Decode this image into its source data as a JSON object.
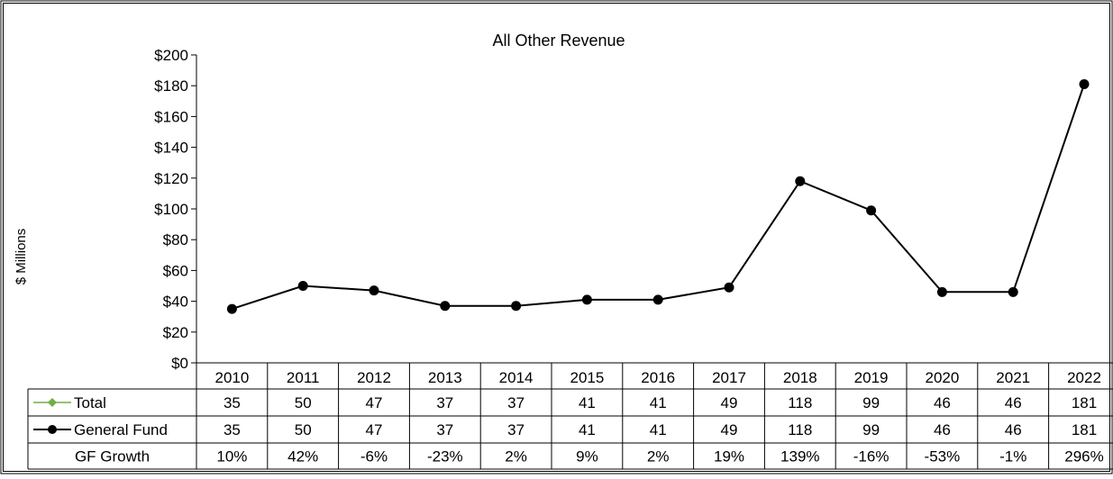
{
  "chart_data": {
    "type": "line",
    "title": "All Other Revenue",
    "ylabel": "$ Millions",
    "ylim": [
      0,
      200
    ],
    "y_ticks": [
      "$0",
      "$20",
      "$40",
      "$60",
      "$80",
      "$100",
      "$120",
      "$140",
      "$160",
      "$180",
      "$200"
    ],
    "categories": [
      "2010",
      "2011",
      "2012",
      "2013",
      "2014",
      "2015",
      "2016",
      "2017",
      "2018",
      "2019",
      "2020",
      "2021",
      "2022"
    ],
    "series": [
      {
        "name": "Total",
        "color": "#70ad47",
        "marker": "diamond",
        "visible_line": false,
        "values": [
          35,
          50,
          47,
          37,
          37,
          41,
          41,
          49,
          118,
          99,
          46,
          46,
          181
        ]
      },
      {
        "name": "General Fund",
        "color": "#000000",
        "marker": "circle",
        "visible_line": true,
        "values": [
          35,
          50,
          47,
          37,
          37,
          41,
          41,
          49,
          118,
          99,
          46,
          46,
          181
        ]
      }
    ],
    "table_rows": [
      {
        "label": "Total",
        "cells": [
          "35",
          "50",
          "47",
          "37",
          "37",
          "41",
          "41",
          "49",
          "118",
          "99",
          "46",
          "46",
          "181"
        ]
      },
      {
        "label": "General Fund",
        "cells": [
          "35",
          "50",
          "47",
          "37",
          "37",
          "41",
          "41",
          "49",
          "118",
          "99",
          "46",
          "46",
          "181"
        ]
      },
      {
        "label": "GF Growth",
        "cells": [
          "10%",
          "42%",
          "-6%",
          "-23%",
          "2%",
          "9%",
          "2%",
          "19%",
          "139%",
          "-16%",
          "-53%",
          "-1%",
          "296%"
        ]
      }
    ],
    "grid": false
  }
}
